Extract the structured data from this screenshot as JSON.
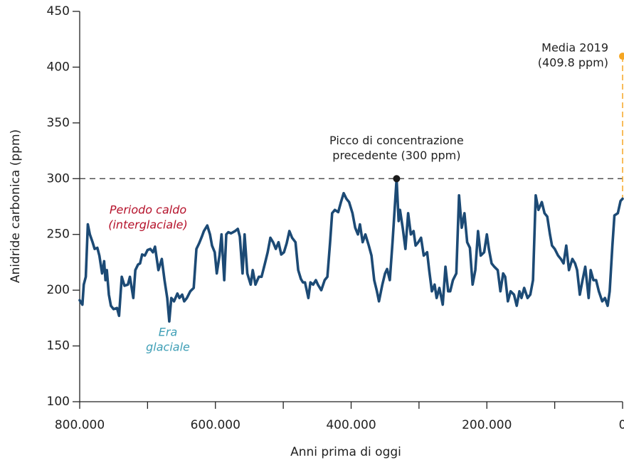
{
  "chart_data": {
    "type": "line",
    "x_label": "Anni prima di oggi",
    "y_label": "Anidride carbonica (ppm)",
    "xlim": [
      800000,
      0
    ],
    "ylim": [
      100,
      450
    ],
    "xticks": [
      {
        "value": 800000,
        "label": "800.000"
      },
      {
        "value": 600000,
        "label": "600.000"
      },
      {
        "value": 400000,
        "label": "400.000"
      },
      {
        "value": 200000,
        "label": "200.000"
      },
      0
    ],
    "xticks_minor": [
      700000,
      500000,
      300000,
      100000
    ],
    "yticks": [
      100,
      150,
      200,
      250,
      300,
      350,
      400,
      450
    ],
    "color": "#1c4a75",
    "x": [
      800000,
      796000,
      794000,
      791000,
      788000,
      785000,
      781000,
      778000,
      774000,
      771000,
      767000,
      764000,
      762000,
      760000,
      757000,
      754000,
      750000,
      745000,
      742000,
      738000,
      734000,
      729000,
      726000,
      721000,
      718000,
      714000,
      711000,
      708000,
      704000,
      700000,
      696000,
      692000,
      689000,
      684000,
      679000,
      675000,
      671000,
      668000,
      665000,
      661000,
      656000,
      653000,
      649000,
      646000,
      642000,
      637000,
      632000,
      628000,
      624000,
      620000,
      617000,
      612000,
      608000,
      605000,
      601000,
      598000,
      594000,
      591000,
      587000,
      584000,
      581000,
      577000,
      571000,
      567000,
      564000,
      560000,
      557000,
      553000,
      548000,
      545000,
      541000,
      536000,
      532000,
      527000,
      523000,
      519000,
      515000,
      511000,
      507000,
      503000,
      499000,
      495000,
      491000,
      487000,
      482000,
      478000,
      474000,
      471000,
      468000,
      463000,
      460000,
      456000,
      452000,
      449000,
      444000,
      439000,
      435000,
      431000,
      428000,
      424000,
      419000,
      415000,
      411000,
      407000,
      403000,
      398000,
      394000,
      390000,
      387000,
      383000,
      379000,
      374000,
      370000,
      366000,
      362000,
      359000,
      354000,
      350000,
      347000,
      343000,
      339000,
      333000,
      330000,
      328000,
      324000,
      320000,
      316000,
      312000,
      308000,
      305000,
      301000,
      297000,
      293000,
      288000,
      285000,
      281000,
      277000,
      274000,
      270000,
      265000,
      261000,
      257000,
      254000,
      250000,
      245000,
      241000,
      237000,
      233000,
      229000,
      225000,
      221000,
      217000,
      213000,
      209000,
      204000,
      200000,
      197000,
      193000,
      189000,
      184000,
      180000,
      176000,
      173000,
      169000,
      165000,
      160000,
      156000,
      152000,
      149000,
      145000,
      140000,
      136000,
      132000,
      128000,
      124000,
      119000,
      115000,
      111000,
      107000,
      104000,
      100000,
      95000,
      91000,
      87000,
      83000,
      79000,
      74000,
      70000,
      67000,
      63000,
      59000,
      55000,
      50000,
      47000,
      43000,
      39000,
      35000,
      30000,
      26000,
      22000,
      19000,
      15000,
      12000,
      7000,
      3000,
      0
    ],
    "values": [
      191,
      187,
      205,
      212,
      259,
      250,
      243,
      237,
      238,
      231,
      215,
      226,
      209,
      218,
      196,
      186,
      183,
      184,
      177,
      212,
      204,
      205,
      212,
      193,
      218,
      223,
      224,
      232,
      231,
      236,
      237,
      234,
      239,
      218,
      228,
      209,
      193,
      172,
      193,
      190,
      197,
      193,
      196,
      190,
      193,
      199,
      202,
      237,
      242,
      248,
      253,
      258,
      250,
      240,
      234,
      215,
      231,
      250,
      209,
      250,
      252,
      251,
      253,
      255,
      248,
      215,
      250,
      215,
      205,
      218,
      205,
      212,
      212,
      224,
      234,
      247,
      243,
      237,
      243,
      232,
      234,
      242,
      253,
      247,
      243,
      218,
      210,
      207,
      207,
      193,
      207,
      205,
      209,
      205,
      200,
      209,
      212,
      243,
      269,
      272,
      270,
      279,
      287,
      282,
      279,
      269,
      256,
      250,
      259,
      243,
      250,
      240,
      231,
      209,
      199,
      190,
      205,
      215,
      219,
      209,
      243,
      300,
      262,
      272,
      256,
      237,
      269,
      250,
      253,
      240,
      243,
      247,
      231,
      234,
      218,
      199,
      205,
      193,
      202,
      187,
      221,
      199,
      199,
      209,
      215,
      285,
      256,
      269,
      243,
      238,
      205,
      218,
      253,
      231,
      234,
      250,
      237,
      224,
      221,
      218,
      199,
      215,
      212,
      190,
      199,
      196,
      186,
      199,
      193,
      202,
      193,
      196,
      209,
      285,
      272,
      279,
      269,
      266,
      250,
      240,
      237,
      231,
      228,
      224,
      240,
      218,
      228,
      224,
      218,
      196,
      209,
      221,
      193,
      218,
      209,
      209,
      199,
      190,
      193,
      186,
      199,
      240,
      267,
      269,
      280,
      282
    ],
    "peak": {
      "x": 333000,
      "y": 300,
      "color": "#1a1a1a",
      "label": [
        "Picco di concentrazione",
        "precedente (300 ppm)"
      ]
    },
    "current": {
      "x": 0,
      "y": 409.8,
      "color": "#f5a623",
      "label": [
        "Media 2019",
        "(409.8 ppm)"
      ]
    },
    "annotations": [
      {
        "text": [
          "Periodo caldo",
          "(interglaciale)"
        ],
        "color": "#b5122b"
      },
      {
        "text": [
          "Era",
          "glaciale"
        ],
        "color": "#3f9fb6"
      }
    ]
  }
}
